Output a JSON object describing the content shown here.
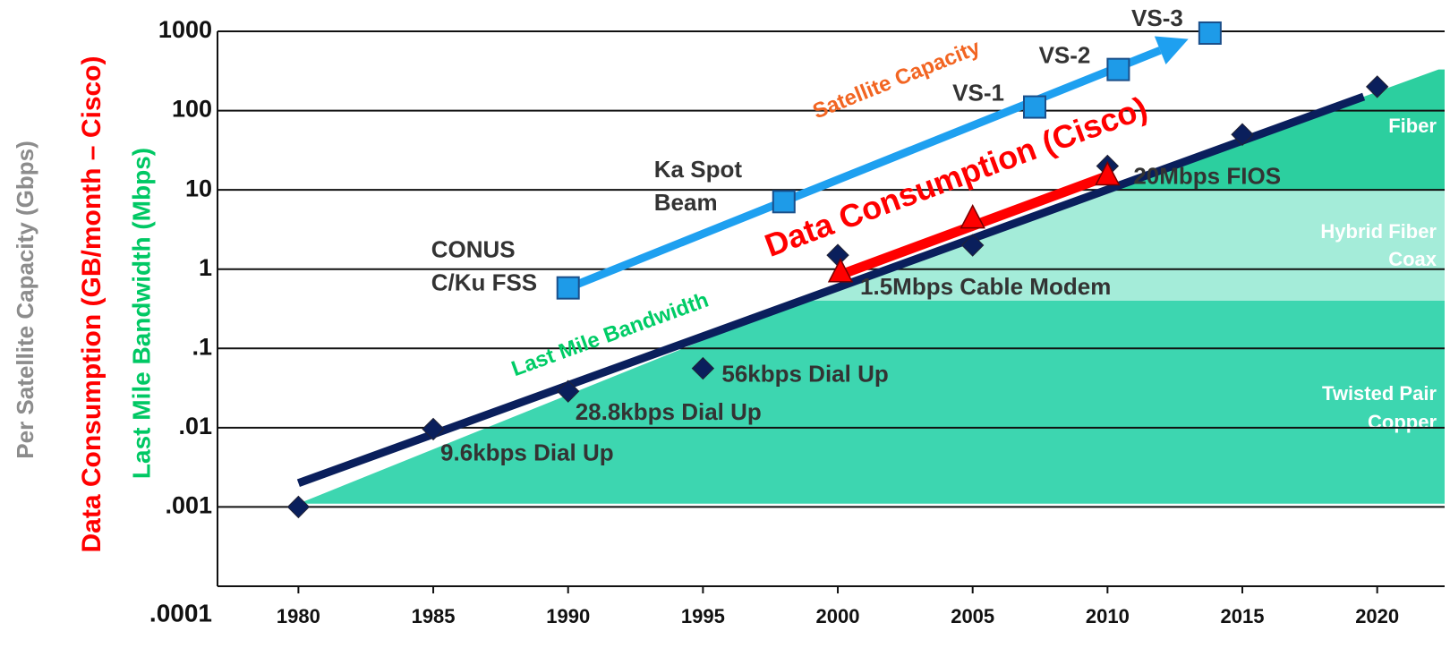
{
  "chart_data": {
    "type": "scatter",
    "log_y": true,
    "xlim": [
      1977,
      2022.5
    ],
    "xticks": [
      1980,
      1985,
      1990,
      1995,
      2000,
      2005,
      2010,
      2015,
      2020
    ],
    "ylim": [
      0.0001,
      1000
    ],
    "yticks": [
      1000,
      100,
      10,
      1,
      {
        "value": 0.1,
        "label": ".1"
      },
      {
        "value": 0.01,
        "label": ".01"
      },
      {
        "value": 0.001,
        "label": ".001"
      },
      {
        "value": 0.0001,
        "label": ".0001"
      }
    ],
    "grid": true,
    "y_labels": [
      {
        "text": "Per Satellite Capacity (Gbps)",
        "color": "#8c8c8c"
      },
      {
        "text": "Data Consumption (GB/month – Cisco)",
        "color": "#ff0000"
      },
      {
        "text": "Last Mile Bandwidth (Mbps)",
        "color": "#00c864"
      }
    ],
    "regions": [
      {
        "lines": [
          "Twisted Pair",
          "Copper"
        ],
        "ylim": [
          0.0011,
          0.4
        ],
        "color": "#3dd6b0"
      },
      {
        "lines": [
          "Hybrid Fiber",
          "Coax"
        ],
        "ylim": [
          0.4,
          10
        ],
        "color": "#a4ecd9"
      },
      {
        "lines": [
          "Fiber"
        ],
        "ylim": [
          10,
          330
        ],
        "color": "#2ccf9f"
      }
    ],
    "series": [
      {
        "name": "Last Mile Bandwidth",
        "kind": "line",
        "color": "#0a1f5c",
        "label_color": "#00cc66",
        "x": [
          1980,
          2019.5
        ],
        "values": [
          0.002,
          150
        ]
      },
      {
        "kind": "points",
        "marker": "diamond",
        "color": "#0a1f5c",
        "x": [
          1980,
          1985,
          1990,
          1995,
          2000,
          2005,
          2010,
          2015,
          2020
        ],
        "values": [
          0.001,
          0.0096,
          0.0288,
          0.056,
          1.5,
          2,
          20,
          50,
          200
        ],
        "point_labels": [
          null,
          [
            "9.6kbps Dial Up"
          ],
          [
            "28.8kbps Dial Up"
          ],
          [
            "56kbps Dial Up"
          ],
          [
            "1.5Mbps Cable Modem"
          ],
          null,
          [
            "20Mbps FIOS"
          ],
          null,
          null
        ]
      },
      {
        "name": "Satellite Capacity",
        "kind": "arrow",
        "color": "#1ea0f0",
        "label_color": "#f26522",
        "x": [
          1990,
          2013
        ],
        "values": [
          0.58,
          800
        ]
      },
      {
        "kind": "points",
        "marker": "square",
        "color": "#1e9be8",
        "x": [
          1990,
          1998,
          2007.3,
          2010.4,
          2013.8
        ],
        "values": [
          0.58,
          7.1,
          111,
          330,
          950
        ],
        "point_labels": [
          [
            "CONUS",
            "C/Ku FSS"
          ],
          [
            "Ka Spot",
            "Beam"
          ],
          [
            "VS-1"
          ],
          [
            "VS-2"
          ],
          [
            "VS-3"
          ]
        ]
      },
      {
        "name": "Data Consumption (Cisco)",
        "kind": "line",
        "color": "#ff0000",
        "label_color": "#ff0000",
        "x": [
          2000.3,
          2010
        ],
        "values": [
          0.9,
          15
        ]
      },
      {
        "kind": "points",
        "marker": "triangle",
        "color": "#ff0000",
        "x": [
          2000.1,
          2005,
          2010
        ],
        "values": [
          0.9,
          4.3,
          15
        ]
      }
    ]
  }
}
